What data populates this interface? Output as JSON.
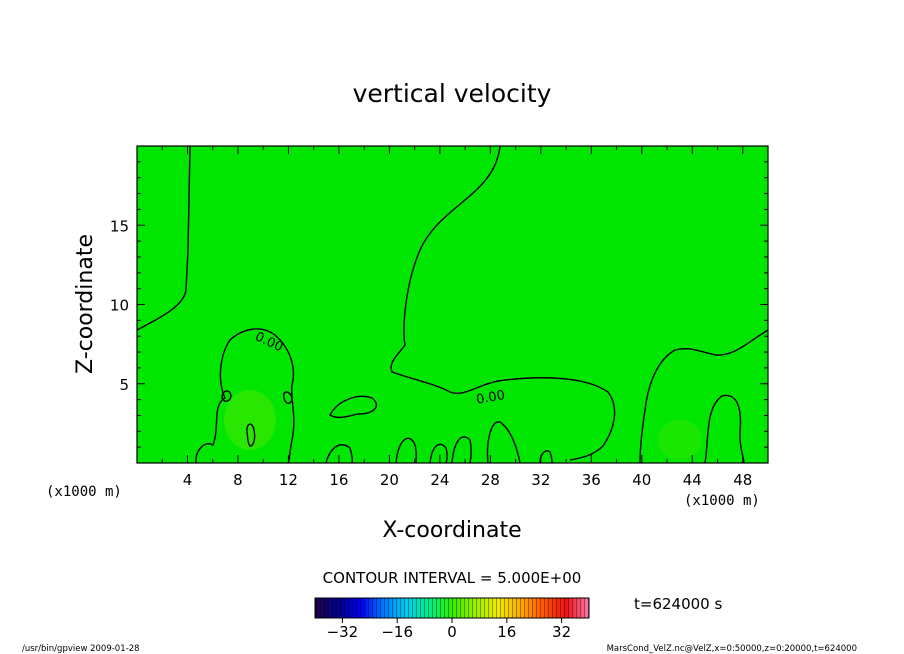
{
  "chart_data": {
    "type": "heatmap",
    "title": "vertical velocity",
    "xlabel": "X-coordinate",
    "ylabel": "Z-coordinate",
    "x_unit": "(x1000 m)",
    "y_unit": "(x1000 m)",
    "xlim": [
      0,
      50
    ],
    "ylim": [
      0,
      20
    ],
    "x_ticks": [
      4,
      8,
      12,
      16,
      20,
      24,
      28,
      32,
      36,
      40,
      44,
      48
    ],
    "y_ticks": [
      5,
      10,
      15
    ],
    "contour_labels": [
      {
        "text": "0.00",
        "x": 10.5,
        "y": 7.7
      },
      {
        "text": "0.00",
        "x": 28.0,
        "y": 4.2
      }
    ],
    "contour_interval": "CONTOUR INTERVAL = 5.000E+00",
    "colorbar": {
      "ticks": [
        -32,
        -16,
        0,
        16,
        32
      ],
      "range": [
        -40,
        40
      ],
      "colors": [
        "#22004a",
        "#000088",
        "#0000ee",
        "#0077ff",
        "#00ccee",
        "#00ee88",
        "#33ee00",
        "#99ee00",
        "#eeee00",
        "#ffaa00",
        "#ff5500",
        "#ee1111",
        "#ff77aa"
      ]
    },
    "field_color": "#00e600",
    "time_label": "t=624000 s",
    "footer_left": "/usr/bin/gpview  2009-01-28",
    "footer_right": "MarsCond_VelZ.nc@VelZ,x=0:50000,z=0:20000,t=624000"
  }
}
